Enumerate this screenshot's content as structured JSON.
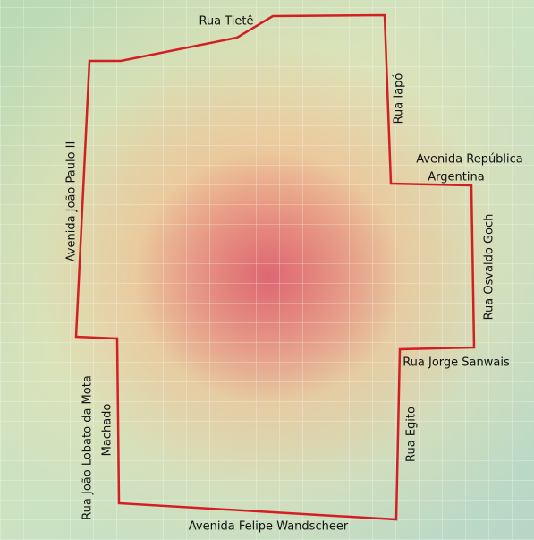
{
  "map": {
    "labels": [
      {
        "lines": [
          "Rua Tietê"
        ]
      },
      {
        "lines": [
          "Rua Iapó"
        ]
      },
      {
        "lines": [
          "Avenida República",
          "Argentina"
        ]
      },
      {
        "lines": [
          "Avenida João Paulo II"
        ]
      },
      {
        "lines": [
          "Rua Osvaldo Goch"
        ]
      },
      {
        "lines": [
          "Rua Jorge Sanwais"
        ]
      },
      {
        "lines": [
          "Rua João Lobato da Mota",
          "Machado"
        ]
      },
      {
        "lines": [
          "Rua Egito"
        ]
      },
      {
        "lines": [
          "Avenida Felipe Wandscheer"
        ]
      }
    ]
  }
}
